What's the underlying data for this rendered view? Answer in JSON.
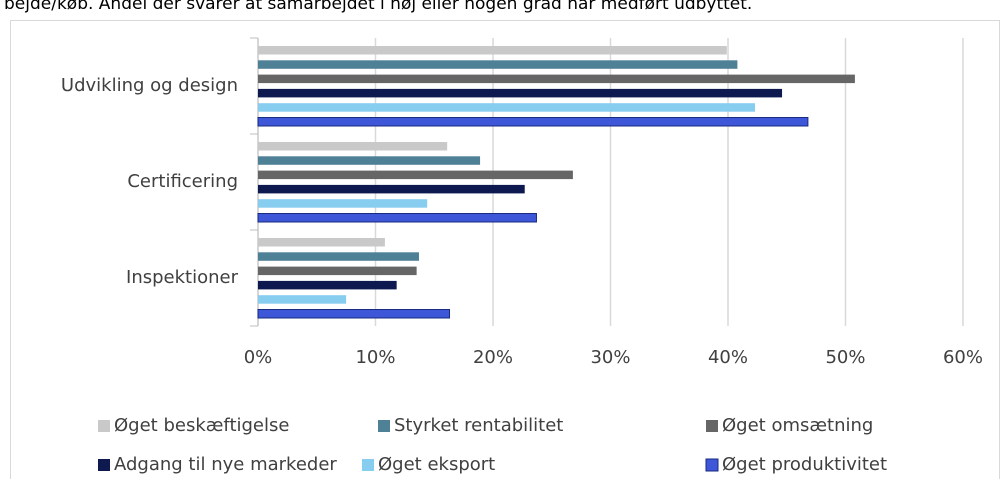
{
  "chart_data": {
    "type": "barh",
    "subtitle": "bejde/køb. Andel der svarer at samarbejdet i høj eller nogen grad har medført udbyttet.",
    "categories": [
      "Udvikling og design",
      "Certificering",
      "Inspektioner"
    ],
    "series": [
      {
        "name": "Øget beskæftigelse",
        "color": "#c9c9c9",
        "values": [
          39.9,
          16.1,
          10.8
        ]
      },
      {
        "name": "Styrket rentabilitet",
        "color": "#4f8196",
        "values": [
          40.8,
          18.9,
          13.7
        ]
      },
      {
        "name": "Øget omsætning",
        "color": "#666666",
        "values": [
          50.8,
          26.8,
          13.5
        ]
      },
      {
        "name": "Adgang til nye markeder",
        "color": "#0e1a4f",
        "values": [
          44.6,
          22.7,
          11.8
        ]
      },
      {
        "name": "Øget eksport",
        "color": "#87cdf0",
        "values": [
          42.3,
          14.4,
          7.5
        ]
      },
      {
        "name": "Øget produktivitet",
        "color": "#3d57d8",
        "values": [
          46.8,
          23.7,
          16.3
        ]
      }
    ],
    "xlim": [
      0,
      60
    ],
    "xticks": [
      {
        "value": 0,
        "label": "0%"
      },
      {
        "value": 10,
        "label": "10%"
      },
      {
        "value": 20,
        "label": "20%"
      },
      {
        "value": 30,
        "label": "30%"
      },
      {
        "value": 40,
        "label": "40%"
      },
      {
        "value": 50,
        "label": "50%"
      },
      {
        "value": 60,
        "label": "60%"
      }
    ],
    "grid": true,
    "legend": "bottom"
  }
}
